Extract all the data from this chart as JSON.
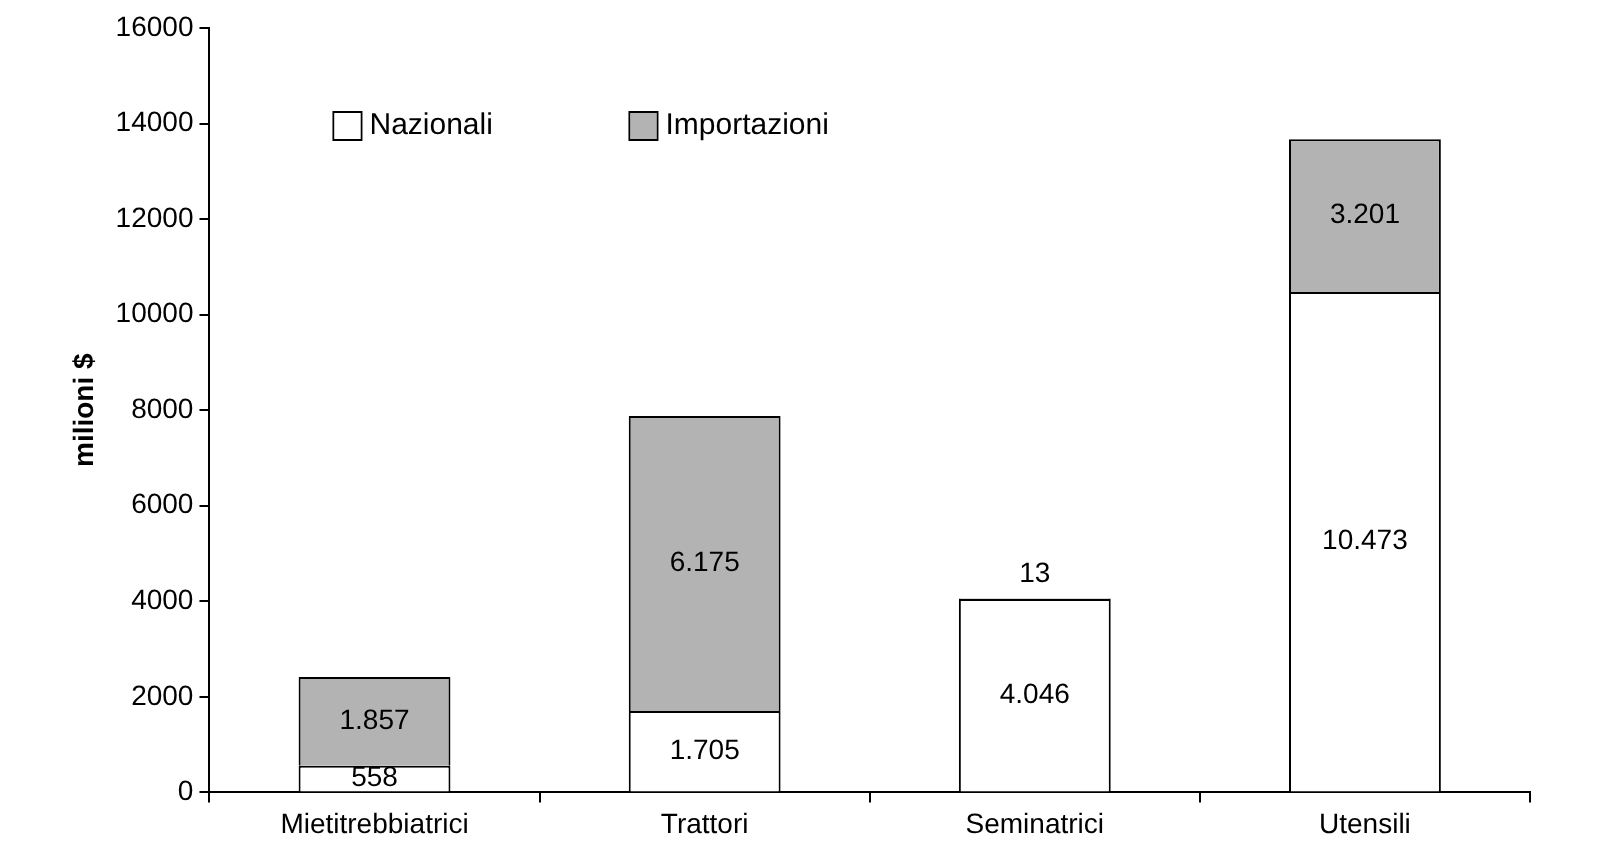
{
  "chart_data": {
    "type": "bar",
    "stacked": true,
    "ylabel": "milioni $",
    "categories": [
      "Mietitrebbiatrici",
      "Trattori",
      "Seminatrici",
      "Utensili"
    ],
    "series": [
      {
        "name": "Nazionali",
        "color": "#ffffff",
        "values": [
          558,
          1705,
          4046,
          10473
        ],
        "value_labels": [
          "558",
          "1.705",
          "4.046",
          "10.473"
        ]
      },
      {
        "name": "Importazioni",
        "color": "#b3b3b3",
        "values": [
          1857,
          6175,
          13,
          3201
        ],
        "value_labels": [
          "1.857",
          "6.175",
          "13",
          "3.201"
        ]
      }
    ],
    "ylim": [
      0,
      16000
    ],
    "yticks": [
      0,
      2000,
      4000,
      6000,
      8000,
      10000,
      12000,
      14000,
      16000
    ],
    "grid": false,
    "legend": "top left"
  }
}
